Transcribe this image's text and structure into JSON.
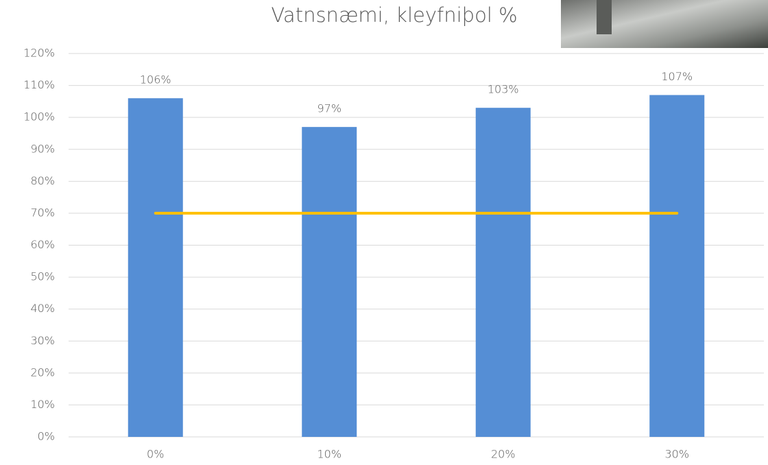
{
  "chart_data": {
    "type": "bar",
    "title": "Vatnsnæmi, kleyfniþol %",
    "categories": [
      "0%",
      "10%",
      "20%",
      "30%"
    ],
    "series": [
      {
        "type": "bar",
        "color": "#558ed5",
        "values": [
          106,
          97,
          103,
          107
        ],
        "value_labels": [
          "106%",
          "97%",
          "103%",
          "107%"
        ]
      },
      {
        "type": "line",
        "color": "#ffc000",
        "values": [
          70,
          70,
          70,
          70
        ]
      }
    ],
    "ylim": [
      0,
      120
    ],
    "yticks": [
      {
        "value": 0,
        "label": "0%"
      },
      {
        "value": 10,
        "label": "10%"
      },
      {
        "value": 20,
        "label": "20%"
      },
      {
        "value": 30,
        "label": "30%"
      },
      {
        "value": 40,
        "label": "40%"
      },
      {
        "value": 50,
        "label": "50%"
      },
      {
        "value": 60,
        "label": "60%"
      },
      {
        "value": 70,
        "label": "70%"
      },
      {
        "value": 80,
        "label": "80%"
      },
      {
        "value": 90,
        "label": "90%"
      },
      {
        "value": 100,
        "label": "100%"
      },
      {
        "value": 110,
        "label": "110%"
      },
      {
        "value": 120,
        "label": "120%"
      }
    ],
    "grid": true
  }
}
